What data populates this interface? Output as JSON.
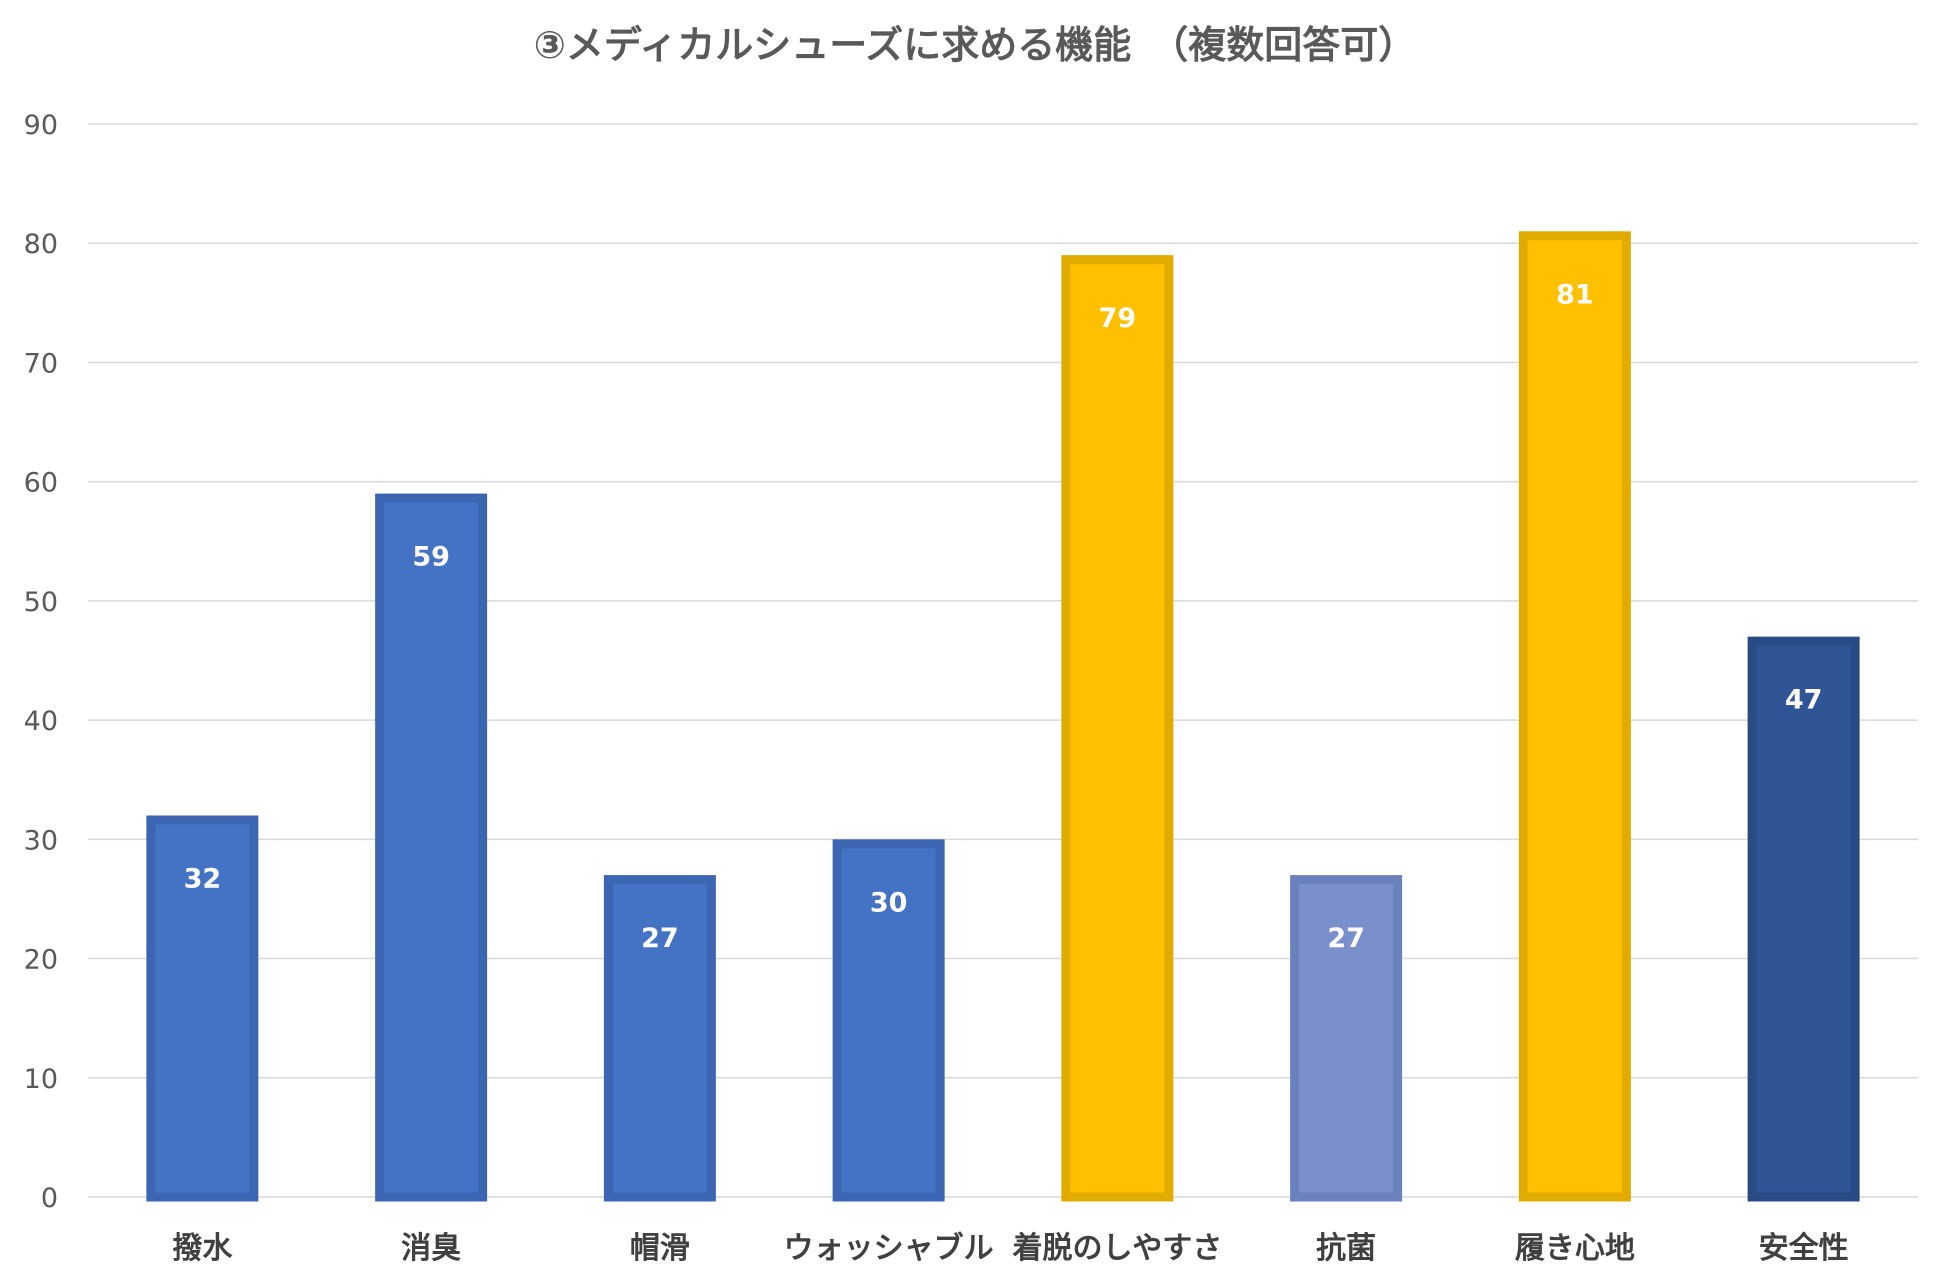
{
  "chart_data": {
    "type": "bar",
    "title": "③メディカルシューズに求める機能　（複数回答可）",
    "xlabel": "",
    "ylabel": "",
    "ylim": [
      0,
      90
    ],
    "y_ticks": [
      0,
      10,
      20,
      30,
      40,
      50,
      60,
      70,
      80,
      90
    ],
    "grid": true,
    "categories": [
      "撥水",
      "消臭",
      "帽滑",
      "ウォッシャブル",
      "着脱のしやすさ",
      "抗菌",
      "履き心地",
      "安全性"
    ],
    "values": [
      32,
      59,
      27,
      30,
      79,
      27,
      81,
      47
    ],
    "data_labels": [
      "32",
      "59",
      "27",
      "30",
      "79",
      "27",
      "81",
      "47"
    ],
    "bar_colors": [
      "#4472c4",
      "#4472c4",
      "#4472c4",
      "#4472c4",
      "#ffc000",
      "#7a8fcc",
      "#ffc000",
      "#2f5597"
    ],
    "bar_border_colors": [
      "#3c66b2",
      "#3c66b2",
      "#3c66b2",
      "#3c66b2",
      "#e2ab00",
      "#6b80be",
      "#e2ab00",
      "#284b86"
    ],
    "label_color": "#ffffff",
    "grid_color": "#d9d9d9"
  }
}
